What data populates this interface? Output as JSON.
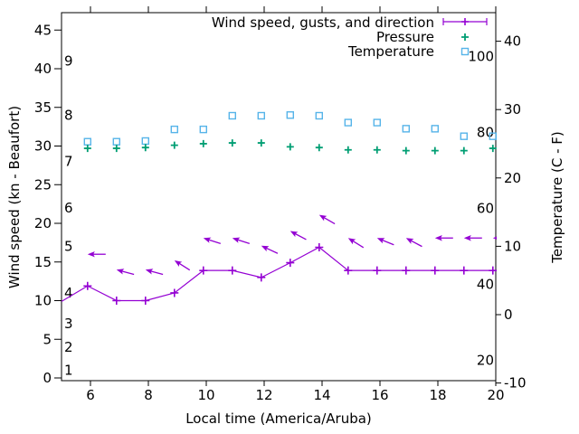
{
  "chart_data": {
    "type": "line",
    "title": "",
    "background": "#ffffff",
    "grid": false,
    "x_axis": {
      "label": "Local time (America/Aruba)",
      "ticks": [
        6,
        8,
        10,
        12,
        14,
        16,
        18,
        20
      ],
      "range": [
        5,
        20
      ]
    },
    "y_axis_left": {
      "label": "Wind speed (kn - Beaufort)",
      "unit": "kn",
      "ticks": [
        0,
        5,
        10,
        15,
        20,
        25,
        30,
        35,
        40,
        45
      ],
      "beaufort": {
        "labels": [
          "1",
          "2",
          "3",
          "4",
          "5",
          "6",
          "7",
          "8",
          "9"
        ],
        "kn_positions": [
          1,
          4,
          7,
          11,
          17,
          22,
          28,
          34,
          41
        ]
      }
    },
    "y_axis_right": {
      "label": "Temperature (C - F)",
      "celsius_ticks": [
        -10,
        0,
        10,
        20,
        30,
        40
      ],
      "fahrenheit_ticks": [
        20,
        40,
        60,
        80,
        100
      ],
      "celsius_range": [
        -10,
        44
      ]
    },
    "x_hours": [
      5.9,
      6.9,
      7.9,
      8.9,
      9.9,
      10.9,
      11.9,
      12.9,
      13.9,
      14.9,
      15.9,
      16.9,
      17.9,
      18.9,
      19.9
    ],
    "series": {
      "wind_speed": {
        "legend": "Wind speed, gusts, and direction",
        "color": "#9400d3",
        "unit": "kn",
        "values": [
          11.9,
          10,
          10,
          11,
          13.9,
          13.9,
          13,
          14.9,
          16.9,
          13.9,
          13.9,
          13.9,
          13.9,
          13.9,
          13.9
        ],
        "edge_start": {
          "hour": 5.0,
          "value": 9.9
        },
        "edge_end": {
          "hour": 20.0,
          "value": 13.9
        }
      },
      "gusts": {
        "color": "#9400d3",
        "unit": "kn",
        "values": [
          16,
          14,
          14,
          15.2,
          18.1,
          18.1,
          17.1,
          19,
          21.1,
          18.1,
          18.1,
          18.1,
          18.1,
          18.1,
          18.1
        ],
        "arrow_tilt_deg": [
          0,
          15,
          15,
          32,
          18,
          18,
          25,
          28,
          30,
          32,
          22,
          28,
          0,
          0,
          0
        ]
      },
      "pressure": {
        "legend": "Pressure",
        "color": "#009e73",
        "values_on_left_axis": [
          29.7,
          29.7,
          29.8,
          30.1,
          30.3,
          30.4,
          30.4,
          29.9,
          29.8,
          29.5,
          29.5,
          29.4,
          29.4,
          29.4,
          29.7
        ]
      },
      "temperature": {
        "legend": "Temperature",
        "color": "#56b4e9",
        "unit": "C",
        "values": [
          25.3,
          25.3,
          25.4,
          27.1,
          27.1,
          29.1,
          29.1,
          29.2,
          29.1,
          28.1,
          28.1,
          27.2,
          27.2,
          26.1,
          26.1
        ]
      }
    },
    "legend": {
      "position": "top-right",
      "items": [
        "Wind speed, gusts, and direction",
        "Pressure",
        "Temperature"
      ]
    }
  }
}
